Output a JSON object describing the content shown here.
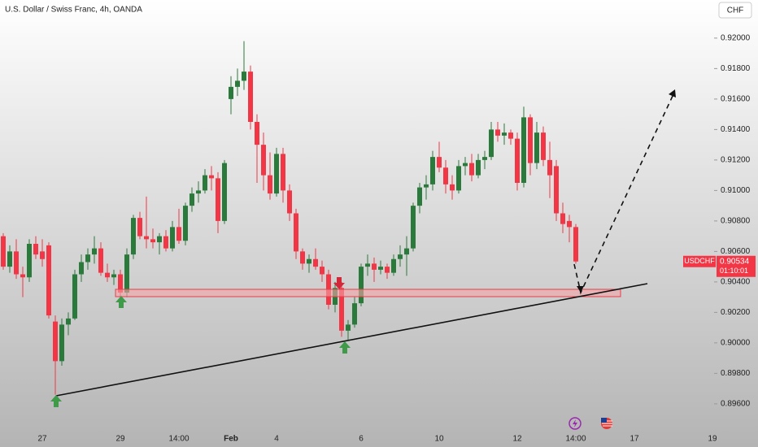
{
  "chart_data": {
    "type": "candlestick",
    "title": "U.S. Dollar / Swiss Franc, 4h, OANDA",
    "currency": "CHF",
    "symbol": "USDCHF",
    "last_price": 0.90534,
    "countdown": "01:10:01",
    "up_color": "#2a7a3b",
    "down_color": "#f23645",
    "ylim": [
      0.8945,
      0.9225
    ],
    "yticks": [
      {
        "value": 0.896,
        "label": "0.89600"
      },
      {
        "value": 0.898,
        "label": "0.89800"
      },
      {
        "value": 0.9,
        "label": "0.90000"
      },
      {
        "value": 0.902,
        "label": "0.90200"
      },
      {
        "value": 0.904,
        "label": "0.90400"
      },
      {
        "value": 0.906,
        "label": "0.90600"
      },
      {
        "value": 0.908,
        "label": "0.90800"
      },
      {
        "value": 0.91,
        "label": "0.91000"
      },
      {
        "value": 0.912,
        "label": "0.91200"
      },
      {
        "value": 0.914,
        "label": "0.91400"
      },
      {
        "value": 0.916,
        "label": "0.91600"
      },
      {
        "value": 0.918,
        "label": "0.91800"
      },
      {
        "value": 0.92,
        "label": "0.92000"
      }
    ],
    "categories": [
      null,
      null,
      null,
      null,
      null,
      null,
      "27",
      null,
      null,
      null,
      null,
      null,
      null,
      null,
      null,
      null,
      null,
      null,
      "29",
      null,
      null,
      null,
      null,
      null,
      null,
      null,
      null,
      "14:00",
      null,
      null,
      null,
      null,
      null,
      null,
      null,
      "Feb",
      null,
      null,
      null,
      null,
      null,
      null,
      "4",
      null,
      null,
      null,
      null,
      null,
      null,
      null,
      null,
      null,
      null,
      null,
      null,
      "6",
      null,
      null,
      null,
      null,
      null,
      null,
      null,
      null,
      null,
      null,
      null,
      "10",
      null,
      null,
      null,
      null,
      null,
      null,
      null,
      null,
      null,
      null,
      null,
      "12",
      null,
      null,
      null,
      null,
      null,
      null,
      null,
      null,
      "14:00",
      null,
      null,
      null,
      null,
      null,
      null,
      null,
      null,
      "17",
      null,
      null,
      null,
      null,
      null,
      null,
      null,
      null,
      null,
      null,
      null,
      "19"
    ],
    "open": [
      0.907,
      0.905,
      0.906,
      0.9045,
      0.9043,
      0.9065,
      0.906,
      0.9064,
      0.9014,
      0.8988,
      0.9012,
      0.9016,
      0.9045,
      0.9053,
      0.9058,
      0.9062,
      0.9046,
      0.9043,
      0.9045,
      0.9033,
      0.9058,
      0.9082,
      0.907,
      0.9068,
      0.9066,
      0.907,
      0.9062,
      0.9076,
      0.9067,
      0.909,
      0.9098,
      0.91,
      0.911,
      0.9108,
      0.908,
      0.916,
      0.9168,
      0.9172,
      0.9178,
      0.9145,
      0.913,
      0.911,
      0.9098,
      0.9124,
      0.91,
      0.9085,
      0.906,
      0.9052,
      0.9055,
      0.905,
      0.9045,
      0.9025,
      0.9036,
      0.9008,
      0.9012,
      0.9026,
      0.905,
      0.9052,
      0.9048,
      0.905,
      0.9046,
      0.9055,
      0.9058,
      0.9062,
      0.909,
      0.9102,
      0.9104,
      0.9122,
      0.9115,
      0.9104,
      0.91,
      0.9116,
      0.9118,
      0.911,
      0.912,
      0.9122,
      0.914,
      0.9136,
      0.9138,
      0.9134,
      0.9105,
      0.9148,
      0.9118,
      0.9138,
      0.912,
      0.9116,
      0.9085,
      0.908,
      0.9076,
      null,
      null,
      null,
      null,
      null,
      null,
      null,
      null,
      null,
      null,
      null,
      null,
      null,
      null,
      null,
      null,
      null,
      null,
      null,
      null,
      null
    ],
    "high": [
      0.9072,
      0.9064,
      0.9068,
      0.905,
      0.9068,
      0.907,
      0.9068,
      0.9066,
      0.9018,
      0.9016,
      0.902,
      0.9048,
      0.9058,
      0.9062,
      0.907,
      0.9066,
      0.9052,
      0.9048,
      0.9048,
      0.9062,
      0.9084,
      0.9086,
      0.9096,
      0.9075,
      0.9072,
      0.9074,
      0.908,
      0.9088,
      0.9092,
      0.9102,
      0.9106,
      0.9114,
      0.9116,
      0.9112,
      0.912,
      0.9175,
      0.918,
      0.9198,
      0.9182,
      0.915,
      0.9138,
      0.9125,
      0.9128,
      0.9128,
      0.9104,
      0.9088,
      0.9062,
      0.9058,
      0.9062,
      0.9054,
      0.9048,
      0.904,
      0.904,
      0.9015,
      0.903,
      0.9052,
      0.9058,
      0.9056,
      0.9054,
      0.9052,
      0.9058,
      0.9064,
      0.907,
      0.9092,
      0.9105,
      0.911,
      0.9126,
      0.9132,
      0.912,
      0.911,
      0.912,
      0.9122,
      0.9124,
      0.9124,
      0.9126,
      0.9145,
      0.9145,
      0.9144,
      0.914,
      0.9138,
      0.9155,
      0.915,
      0.9145,
      0.9142,
      0.9132,
      0.912,
      0.9092,
      0.9084,
      0.9078,
      null,
      null,
      null,
      null,
      null,
      null,
      null,
      null,
      null,
      null,
      null,
      null,
      null,
      null,
      null,
      null,
      null,
      null,
      null,
      null,
      null
    ],
    "low": [
      0.9048,
      0.9046,
      0.9042,
      0.903,
      0.904,
      0.9055,
      0.905,
      0.9016,
      0.8966,
      0.8985,
      0.9005,
      0.9015,
      0.904,
      0.9048,
      0.9052,
      0.9044,
      0.904,
      0.9038,
      0.903,
      0.903,
      0.9055,
      0.9068,
      0.9062,
      0.9062,
      0.9058,
      0.906,
      0.906,
      0.9065,
      0.9064,
      0.9086,
      0.9092,
      0.9098,
      0.91,
      0.9072,
      0.9078,
      0.915,
      0.9162,
      0.9166,
      0.914,
      0.9105,
      0.91,
      0.9094,
      0.9096,
      0.9092,
      0.908,
      0.9055,
      0.9048,
      0.9046,
      0.9048,
      0.904,
      0.9022,
      0.902,
      0.9004,
      0.9002,
      0.901,
      0.9024,
      0.9044,
      0.904,
      0.9045,
      0.9042,
      0.9044,
      0.905,
      0.9044,
      0.906,
      0.9085,
      0.9094,
      0.91,
      0.9112,
      0.9098,
      0.9094,
      0.9098,
      0.911,
      0.9106,
      0.9108,
      0.9114,
      0.912,
      0.9132,
      0.913,
      0.913,
      0.91,
      0.9102,
      0.911,
      0.9114,
      0.9116,
      0.9095,
      0.908,
      0.9072,
      0.9066,
      0.9052,
      null,
      null,
      null,
      null,
      null,
      null,
      null,
      null,
      null,
      null,
      null,
      null,
      null,
      null,
      null,
      null,
      null,
      null,
      null,
      null,
      null
    ],
    "close": [
      0.905,
      0.906,
      0.9045,
      0.9043,
      0.9065,
      0.9058,
      0.9055,
      0.9018,
      0.8988,
      0.9012,
      0.9016,
      0.9045,
      0.9053,
      0.9058,
      0.9062,
      0.9046,
      0.9043,
      0.9045,
      0.9033,
      0.9058,
      0.9082,
      0.907,
      0.9068,
      0.9066,
      0.907,
      0.9062,
      0.9076,
      0.9067,
      0.909,
      0.9098,
      0.91,
      0.911,
      0.9108,
      0.908,
      0.9118,
      0.9168,
      0.9172,
      0.9178,
      0.9145,
      0.913,
      0.911,
      0.9098,
      0.9124,
      0.91,
      0.9085,
      0.906,
      0.9052,
      0.9055,
      0.905,
      0.9045,
      0.9025,
      0.9036,
      0.9008,
      0.9012,
      0.9026,
      0.905,
      0.9052,
      0.9048,
      0.905,
      0.9046,
      0.9055,
      0.9058,
      0.9062,
      0.909,
      0.9102,
      0.9104,
      0.9122,
      0.9115,
      0.9104,
      0.91,
      0.9116,
      0.9118,
      0.911,
      0.912,
      0.9122,
      0.914,
      0.9136,
      0.9138,
      0.9134,
      0.9105,
      0.9148,
      0.9118,
      0.9138,
      0.912,
      0.911,
      0.9085,
      0.9078,
      0.9076,
      0.90534,
      null,
      null,
      null,
      null,
      null,
      null,
      null,
      null,
      null,
      null,
      null,
      null,
      null,
      null,
      null,
      null,
      null,
      null,
      null,
      null,
      null
    ]
  }
}
